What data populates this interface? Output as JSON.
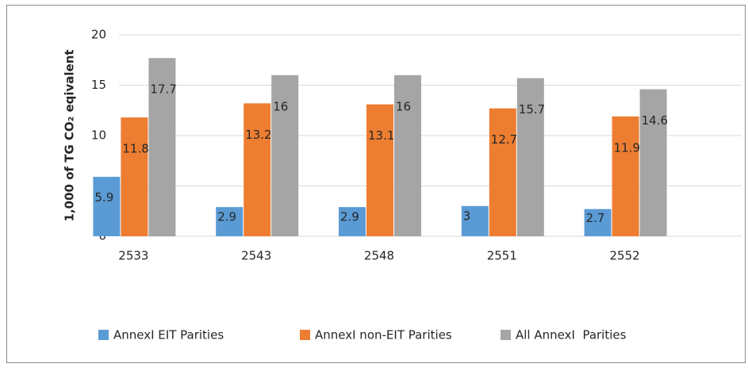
{
  "chart_data": {
    "type": "bar",
    "ylabel": "1,000 of TG CO₂ eqivalent",
    "categories": [
      "2533",
      "2543",
      "2548",
      "2551",
      "2552"
    ],
    "series": [
      {
        "name": "AnnexI EIT Parities",
        "color": "#5b9bd5",
        "values": [
          5.9,
          2.9,
          2.9,
          3,
          2.7
        ]
      },
      {
        "name": "AnnexI non-EIT Parities",
        "color": "#ed7d31",
        "values": [
          11.8,
          13.2,
          13.1,
          12.7,
          11.9
        ]
      },
      {
        "name": "All AnnexI  Parities",
        "color": "#a5a5a5",
        "values": [
          17.7,
          16,
          16,
          15.7,
          14.6
        ]
      }
    ],
    "ylim": [
      0,
      20
    ],
    "yticks": [
      0,
      5,
      10,
      15,
      20
    ],
    "grid": true,
    "legend": "bottom"
  }
}
